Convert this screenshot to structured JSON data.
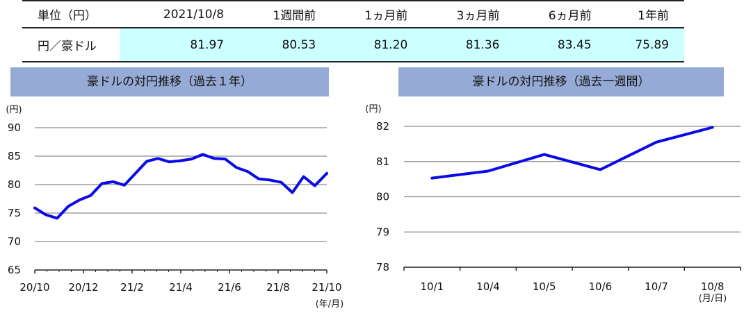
{
  "table": {
    "headers": [
      "単位（円）",
      "2021/10/8",
      "1週間前",
      "1ヵ月前",
      "3ヵ月前",
      "6ヵ月前",
      "1年前"
    ],
    "row_label": "円／豪ドル",
    "values": [
      "81.97",
      "80.53",
      "81.20",
      "81.36",
      "83.45",
      "75.89"
    ]
  },
  "chart_data": [
    {
      "type": "line",
      "title": "豪ドルの対円推移（過去１年）",
      "ylabel": "(円)",
      "xlabel": "(年/月)",
      "ylim": [
        65,
        90
      ],
      "yticks": [
        "90",
        "85",
        "80",
        "75",
        "70",
        "65"
      ],
      "xticks": [
        "20/10",
        "20/12",
        "21/2",
        "21/4",
        "21/6",
        "21/8",
        "21/10"
      ],
      "grid": true,
      "color": "#0a0ae6",
      "x": [
        "20/10/08",
        "20/10/22",
        "20/11/05",
        "20/11/19",
        "20/12/03",
        "20/12/17",
        "20/12/31",
        "21/01/14",
        "21/01/28",
        "21/02/11",
        "21/02/25",
        "21/03/11",
        "21/03/25",
        "21/04/08",
        "21/04/22",
        "21/05/06",
        "21/05/20",
        "21/06/03",
        "21/06/17",
        "21/07/01",
        "21/07/15",
        "21/07/29",
        "21/08/12",
        "21/08/26",
        "21/09/09",
        "21/09/23",
        "21/10/08"
      ],
      "values": [
        75.9,
        74.7,
        74.1,
        76.2,
        77.3,
        78.1,
        80.2,
        80.5,
        79.9,
        82.0,
        84.1,
        84.6,
        84.0,
        84.2,
        84.5,
        85.3,
        84.6,
        84.5,
        83.0,
        82.3,
        81.0,
        80.8,
        80.4,
        78.6,
        81.4,
        79.8,
        81.97
      ]
    },
    {
      "type": "line",
      "title": "豪ドルの対円推移（過去一週間）",
      "ylabel": "(円)",
      "xlabel": "(月/日)",
      "ylim": [
        78,
        82
      ],
      "yticks": [
        "82",
        "81",
        "80",
        "79",
        "78"
      ],
      "categories": [
        "10/1",
        "10/4",
        "10/5",
        "10/6",
        "10/7",
        "10/8"
      ],
      "values": [
        80.53,
        80.73,
        81.2,
        80.77,
        81.55,
        81.97
      ],
      "grid": true,
      "color": "#0a0ae6"
    }
  ]
}
